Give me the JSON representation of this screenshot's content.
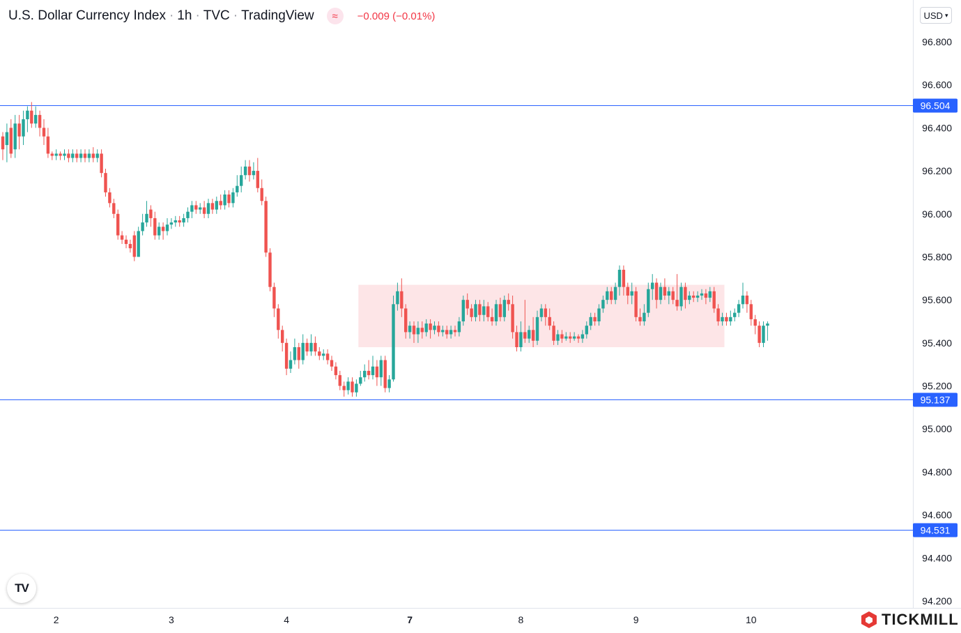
{
  "header": {
    "symbol": "U.S. Dollar Currency Index",
    "interval": "1h",
    "exchange": "TVC",
    "source": "TradingView",
    "indicator_icon": "wave-icon",
    "change": "−0.009 (−0.01%)",
    "change_color": "#f23645"
  },
  "currency_selector": {
    "label": "USD"
  },
  "branding": {
    "tv_logo": "TV",
    "broker": "TICKMILL",
    "broker_color": "#e53935"
  },
  "colors": {
    "up": "#26a69a",
    "down": "#ef5350",
    "level_line": "#2962ff",
    "zone_fill": "#fde0e3"
  },
  "chart_data": {
    "type": "candlestick",
    "title": "U.S. Dollar Currency Index · 1h · TVC · TradingView",
    "ylim": [
      94.15,
      96.9
    ],
    "y_ticks": [
      "96.800",
      "96.600",
      "96.400",
      "96.200",
      "96.000",
      "95.800",
      "95.600",
      "95.400",
      "95.200",
      "95.000",
      "94.800",
      "94.600",
      "94.400",
      "94.200"
    ],
    "x_ticks": [
      "2",
      "3",
      "4",
      "7",
      "8",
      "9",
      "10"
    ],
    "horizontal_levels": [
      {
        "value": 96.504,
        "label": "96.504"
      },
      {
        "value": 95.137,
        "label": "95.137"
      },
      {
        "value": 94.531,
        "label": "94.531"
      }
    ],
    "zone": {
      "from_index": 87,
      "to_index": 175,
      "low": 95.38,
      "high": 95.67
    },
    "candles": [
      [
        96.36,
        96.3,
        96.38,
        96.25
      ],
      [
        96.32,
        96.38,
        96.42,
        96.24
      ],
      [
        96.4,
        96.28,
        96.44,
        96.26
      ],
      [
        96.3,
        96.42,
        96.46,
        96.26
      ],
      [
        96.42,
        96.36,
        96.46,
        96.3
      ],
      [
        96.36,
        96.44,
        96.48,
        96.32
      ],
      [
        96.44,
        96.48,
        96.5,
        96.38
      ],
      [
        96.48,
        96.42,
        96.52,
        96.4
      ],
      [
        96.42,
        96.46,
        96.5,
        96.4
      ],
      [
        96.46,
        96.4,
        96.48,
        96.36
      ],
      [
        96.4,
        96.36,
        96.44,
        96.32
      ],
      [
        96.36,
        96.28,
        96.4,
        96.26
      ],
      [
        96.28,
        96.27,
        96.29,
        96.25
      ],
      [
        96.27,
        96.28,
        96.3,
        96.25
      ],
      [
        96.28,
        96.27,
        96.29,
        96.25
      ],
      [
        96.27,
        96.28,
        96.3,
        96.25
      ],
      [
        96.28,
        96.26,
        96.3,
        96.24
      ],
      [
        96.26,
        96.28,
        96.3,
        96.24
      ],
      [
        96.28,
        96.26,
        96.3,
        96.24
      ],
      [
        96.26,
        96.28,
        96.3,
        96.24
      ],
      [
        96.28,
        96.26,
        96.3,
        96.24
      ],
      [
        96.26,
        96.28,
        96.3,
        96.24
      ],
      [
        96.28,
        96.26,
        96.31,
        96.24
      ],
      [
        96.26,
        96.28,
        96.3,
        96.24
      ],
      [
        96.28,
        96.19,
        96.3,
        96.17
      ],
      [
        96.19,
        96.1,
        96.21,
        96.08
      ],
      [
        96.1,
        96.05,
        96.12,
        96.03
      ],
      [
        96.05,
        96.0,
        96.07,
        95.98
      ],
      [
        96.0,
        95.9,
        96.02,
        95.88
      ],
      [
        95.9,
        95.88,
        95.92,
        95.86
      ],
      [
        95.88,
        95.86,
        95.9,
        95.84
      ],
      [
        95.86,
        95.84,
        95.88,
        95.82
      ],
      [
        95.9,
        95.8,
        95.92,
        95.78
      ],
      [
        95.8,
        95.92,
        95.94,
        95.8
      ],
      [
        95.92,
        95.96,
        96.0,
        95.9
      ],
      [
        95.96,
        96.0,
        96.06,
        95.94
      ],
      [
        96.02,
        95.98,
        96.04,
        95.94
      ],
      [
        95.98,
        95.9,
        96.01,
        95.88
      ],
      [
        95.9,
        95.94,
        95.96,
        95.88
      ],
      [
        95.94,
        95.92,
        95.96,
        95.88
      ],
      [
        95.92,
        95.95,
        95.98,
        95.9
      ],
      [
        95.95,
        95.96,
        95.98,
        95.93
      ],
      [
        95.96,
        95.97,
        95.99,
        95.94
      ],
      [
        95.97,
        95.96,
        95.99,
        95.94
      ],
      [
        95.96,
        95.98,
        96.0,
        95.94
      ],
      [
        95.98,
        96.01,
        96.03,
        95.96
      ],
      [
        96.01,
        96.04,
        96.06,
        95.98
      ],
      [
        96.04,
        96.02,
        96.06,
        96.0
      ],
      [
        96.02,
        96.03,
        96.05,
        96.0
      ],
      [
        96.03,
        96.0,
        96.06,
        95.98
      ],
      [
        96.0,
        96.05,
        96.07,
        95.98
      ],
      [
        96.05,
        96.02,
        96.07,
        96.0
      ],
      [
        96.02,
        96.06,
        96.08,
        96.0
      ],
      [
        96.06,
        96.04,
        96.09,
        96.02
      ],
      [
        96.04,
        96.09,
        96.11,
        96.02
      ],
      [
        96.09,
        96.05,
        96.11,
        96.03
      ],
      [
        96.05,
        96.1,
        96.12,
        96.03
      ],
      [
        96.1,
        96.13,
        96.18,
        96.08
      ],
      [
        96.13,
        96.18,
        96.22,
        96.1
      ],
      [
        96.18,
        96.22,
        96.25,
        96.16
      ],
      [
        96.22,
        96.18,
        96.25,
        96.15
      ],
      [
        96.18,
        96.2,
        96.24,
        96.16
      ],
      [
        96.2,
        96.12,
        96.26,
        96.1
      ],
      [
        96.12,
        96.06,
        96.16,
        96.04
      ],
      [
        96.06,
        95.82,
        96.08,
        95.8
      ],
      [
        95.82,
        95.66,
        95.84,
        95.64
      ],
      [
        95.66,
        95.56,
        95.68,
        95.52
      ],
      [
        95.56,
        95.46,
        95.58,
        95.42
      ],
      [
        95.46,
        95.4,
        95.48,
        95.36
      ],
      [
        95.4,
        95.28,
        95.42,
        95.25
      ],
      [
        95.28,
        95.32,
        95.36,
        95.26
      ],
      [
        95.32,
        95.38,
        95.42,
        95.3
      ],
      [
        95.38,
        95.32,
        95.4,
        95.28
      ],
      [
        95.32,
        95.4,
        95.44,
        95.3
      ],
      [
        95.4,
        95.36,
        95.42,
        95.34
      ],
      [
        95.36,
        95.4,
        95.44,
        95.34
      ],
      [
        95.4,
        95.36,
        95.43,
        95.34
      ],
      [
        95.36,
        95.34,
        95.38,
        95.32
      ],
      [
        95.34,
        95.35,
        95.37,
        95.32
      ],
      [
        95.35,
        95.32,
        95.37,
        95.3
      ],
      [
        95.32,
        95.29,
        95.34,
        95.27
      ],
      [
        95.29,
        95.25,
        95.31,
        95.23
      ],
      [
        95.25,
        95.2,
        95.27,
        95.18
      ],
      [
        95.2,
        95.18,
        95.22,
        95.15
      ],
      [
        95.18,
        95.22,
        95.24,
        95.16
      ],
      [
        95.22,
        95.17,
        95.24,
        95.15
      ],
      [
        95.17,
        95.21,
        95.23,
        95.15
      ],
      [
        95.21,
        95.24,
        95.27,
        95.2
      ],
      [
        95.24,
        95.27,
        95.3,
        95.22
      ],
      [
        95.27,
        95.25,
        95.32,
        95.23
      ],
      [
        95.25,
        95.29,
        95.34,
        95.23
      ],
      [
        95.29,
        95.24,
        95.32,
        95.2
      ],
      [
        95.24,
        95.32,
        95.34,
        95.2
      ],
      [
        95.32,
        95.19,
        95.34,
        95.17
      ],
      [
        95.19,
        95.23,
        95.25,
        95.17
      ],
      [
        95.23,
        95.58,
        95.62,
        95.22
      ],
      [
        95.58,
        95.64,
        95.68,
        95.55
      ],
      [
        95.64,
        95.56,
        95.7,
        95.52
      ],
      [
        95.56,
        95.45,
        95.58,
        95.42
      ],
      [
        95.45,
        95.48,
        95.5,
        95.42
      ],
      [
        95.48,
        95.44,
        95.5,
        95.4
      ],
      [
        95.44,
        95.47,
        95.5,
        95.4
      ],
      [
        95.47,
        95.45,
        95.5,
        95.42
      ],
      [
        95.45,
        95.49,
        95.51,
        95.43
      ],
      [
        95.49,
        95.46,
        95.51,
        95.42
      ],
      [
        95.46,
        95.48,
        95.5,
        95.44
      ],
      [
        95.48,
        95.45,
        95.5,
        95.43
      ],
      [
        95.45,
        95.46,
        95.48,
        95.43
      ],
      [
        95.46,
        95.44,
        95.48,
        95.42
      ],
      [
        95.44,
        95.46,
        95.48,
        95.42
      ],
      [
        95.46,
        95.45,
        95.48,
        95.43
      ],
      [
        95.45,
        95.5,
        95.52,
        95.43
      ],
      [
        95.5,
        95.6,
        95.62,
        95.48
      ],
      [
        95.6,
        95.56,
        95.63,
        95.53
      ],
      [
        95.56,
        95.52,
        95.58,
        95.5
      ],
      [
        95.52,
        95.58,
        95.6,
        95.5
      ],
      [
        95.58,
        95.53,
        95.6,
        95.5
      ],
      [
        95.53,
        95.57,
        95.6,
        95.5
      ],
      [
        95.57,
        95.52,
        95.59,
        95.5
      ],
      [
        95.52,
        95.5,
        95.56,
        95.48
      ],
      [
        95.5,
        95.58,
        95.6,
        95.48
      ],
      [
        95.58,
        95.52,
        95.61,
        95.5
      ],
      [
        95.52,
        95.6,
        95.62,
        95.5
      ],
      [
        95.6,
        95.58,
        95.63,
        95.55
      ],
      [
        95.58,
        95.45,
        95.62,
        95.42
      ],
      [
        95.45,
        95.38,
        95.48,
        95.36
      ],
      [
        95.38,
        95.45,
        95.5,
        95.36
      ],
      [
        95.45,
        95.42,
        95.6,
        95.4
      ],
      [
        95.42,
        95.46,
        95.48,
        95.4
      ],
      [
        95.46,
        95.41,
        95.52,
        95.38
      ],
      [
        95.41,
        95.52,
        95.55,
        95.39
      ],
      [
        95.52,
        95.56,
        95.58,
        95.5
      ],
      [
        95.56,
        95.52,
        95.58,
        95.48
      ],
      [
        95.52,
        95.48,
        95.56,
        95.46
      ],
      [
        95.48,
        95.41,
        95.5,
        95.39
      ],
      [
        95.41,
        95.44,
        95.46,
        95.39
      ],
      [
        95.44,
        95.42,
        95.46,
        95.4
      ],
      [
        95.42,
        95.43,
        95.45,
        95.41
      ],
      [
        95.43,
        95.42,
        95.45,
        95.4
      ],
      [
        95.42,
        95.43,
        95.45,
        95.41
      ],
      [
        95.43,
        95.42,
        95.44,
        95.4
      ],
      [
        95.42,
        95.44,
        95.46,
        95.4
      ],
      [
        95.44,
        95.48,
        95.5,
        95.42
      ],
      [
        95.48,
        95.52,
        95.54,
        95.46
      ],
      [
        95.52,
        95.5,
        95.54,
        95.48
      ],
      [
        95.5,
        95.56,
        95.58,
        95.48
      ],
      [
        95.56,
        95.6,
        95.62,
        95.54
      ],
      [
        95.6,
        95.64,
        95.66,
        95.58
      ],
      [
        95.64,
        95.6,
        95.66,
        95.58
      ],
      [
        95.6,
        95.66,
        95.68,
        95.58
      ],
      [
        95.66,
        95.74,
        95.76,
        95.62
      ],
      [
        95.74,
        95.66,
        95.76,
        95.62
      ],
      [
        95.66,
        95.62,
        95.68,
        95.58
      ],
      [
        95.62,
        95.64,
        95.68,
        95.58
      ],
      [
        95.64,
        95.52,
        95.66,
        95.5
      ],
      [
        95.52,
        95.5,
        95.56,
        95.48
      ],
      [
        95.5,
        95.54,
        95.58,
        95.48
      ],
      [
        95.54,
        95.65,
        95.68,
        95.52
      ],
      [
        95.65,
        95.68,
        95.72,
        95.6
      ],
      [
        95.68,
        95.6,
        95.7,
        95.56
      ],
      [
        95.6,
        95.66,
        95.68,
        95.58
      ],
      [
        95.66,
        95.62,
        95.7,
        95.6
      ],
      [
        95.62,
        95.64,
        95.66,
        95.58
      ],
      [
        95.64,
        95.6,
        95.66,
        95.58
      ],
      [
        95.6,
        95.57,
        95.72,
        95.55
      ],
      [
        95.57,
        95.66,
        95.68,
        95.55
      ],
      [
        95.66,
        95.6,
        95.68,
        95.56
      ],
      [
        95.6,
        95.62,
        95.64,
        95.58
      ],
      [
        95.62,
        95.61,
        95.64,
        95.59
      ],
      [
        95.61,
        95.62,
        95.64,
        95.59
      ],
      [
        95.62,
        95.63,
        95.65,
        95.6
      ],
      [
        95.63,
        95.61,
        95.65,
        95.58
      ],
      [
        95.61,
        95.64,
        95.66,
        95.59
      ],
      [
        95.64,
        95.56,
        95.66,
        95.54
      ],
      [
        95.56,
        95.5,
        95.58,
        95.48
      ],
      [
        95.5,
        95.52,
        95.54,
        95.48
      ],
      [
        95.52,
        95.5,
        95.54,
        95.48
      ],
      [
        95.5,
        95.52,
        95.55,
        95.48
      ],
      [
        95.52,
        95.54,
        95.56,
        95.5
      ],
      [
        95.54,
        95.58,
        95.6,
        95.52
      ],
      [
        95.58,
        95.62,
        95.68,
        95.56
      ],
      [
        95.62,
        95.58,
        95.64,
        95.54
      ],
      [
        95.58,
        95.51,
        95.6,
        95.48
      ],
      [
        95.51,
        95.48,
        95.53,
        95.44
      ],
      [
        95.48,
        95.4,
        95.5,
        95.38
      ],
      [
        95.4,
        95.48,
        95.5,
        95.38
      ],
      [
        95.48,
        95.49,
        95.5,
        95.41
      ]
    ]
  }
}
